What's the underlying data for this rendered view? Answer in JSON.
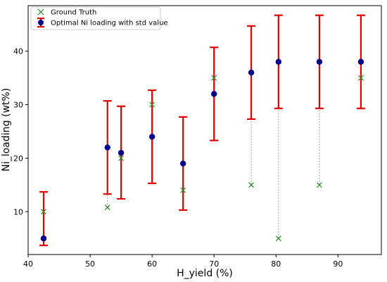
{
  "chart_data": {
    "type": "scatter",
    "xlabel": "H_yield (%)",
    "ylabel": "Ni_loading (wt%)",
    "xlim": [
      40,
      97
    ],
    "ylim": [
      2,
      48.5
    ],
    "xticks": [
      40,
      50,
      60,
      70,
      80,
      90
    ],
    "yticks": [
      10,
      20,
      30,
      40
    ],
    "grid": false,
    "legend_position": "top-left",
    "x": [
      42.5,
      52.8,
      55.0,
      60.0,
      65.0,
      70.0,
      76.0,
      80.4,
      87.0,
      93.7
    ],
    "series": [
      {
        "name": "Ground Truth",
        "marker": "x",
        "color": "#228b22",
        "values": [
          10,
          10.8,
          20,
          30,
          14,
          35,
          15,
          5,
          15,
          35
        ]
      },
      {
        "name": "Optimal Ni loading with std value",
        "marker": "circle",
        "color": "#00008b",
        "error_color": "#e00000",
        "values": [
          5,
          22,
          21,
          24,
          19,
          32,
          36,
          38,
          38,
          38
        ],
        "error_low": [
          3.7,
          13.3,
          12.4,
          15.3,
          10.3,
          23.3,
          27.3,
          29.3,
          29.3,
          29.3
        ],
        "error_high": [
          13.7,
          30.7,
          29.7,
          32.7,
          27.7,
          40.7,
          44.7,
          46.7,
          46.7,
          46.7
        ]
      }
    ]
  }
}
